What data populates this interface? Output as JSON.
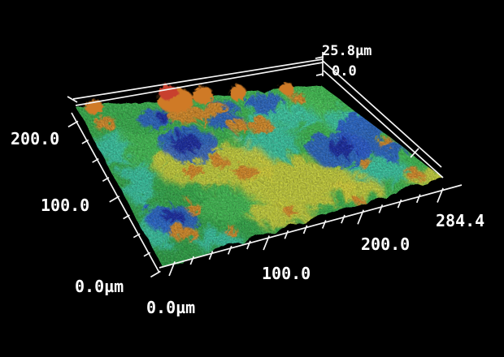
{
  "window": {
    "background_color": "#000000",
    "line_color": "#f5f5f5",
    "text_color": "#ffffff"
  },
  "chart_data": {
    "type": "heatmap",
    "subtype": "3d-surface-topography",
    "description": "Pseudo-color 3D surface height map of a rough sample area, 284.4 µm × ~213 µm, height scale 0–25.8 µm; blue = low, green = mid, yellow/orange/red = high peaks",
    "axes": {
      "x": {
        "unit": "µm",
        "range": [
          0,
          284.4
        ],
        "tick_labels": [
          "0.0µm",
          "100.0",
          "200.0",
          "284.4"
        ]
      },
      "y": {
        "unit": "µm",
        "range_shown": [
          0,
          200
        ],
        "tick_labels": [
          "0.0µm",
          "100.0",
          "200.0"
        ]
      },
      "z": {
        "unit": "µm",
        "range": [
          0,
          25.8
        ],
        "tick_labels": [
          "0.0",
          "25.8µm"
        ]
      }
    },
    "colormap": {
      "base-gradient": [
        "#2f9e48",
        "#49c659"
      ],
      "base-light": "#54cf60",
      "low": "#3fcdb9",
      "valley": "#2e60d4",
      "deep-valley": "#1b2ea4",
      "high": "#dcd63d",
      "higher": "#d98f2d",
      "peak": "#cf7a27",
      "peak-top": "#c8402f"
    },
    "regions_format": "u,v = fractional position on surface (u along 284.4µm axis from front-left corner, v along depth axis toward back); ru,rv = fractional radii; k = height class",
    "regions": [
      {
        "u": 0.18,
        "v": 0.72,
        "ru": 0.105,
        "rv": 0.102,
        "k": "base-light"
      },
      {
        "u": 0.8,
        "v": 0.85,
        "ru": 0.116,
        "rv": 0.084,
        "k": "base-light"
      },
      {
        "u": 0.35,
        "v": 0.25,
        "ru": 0.128,
        "rv": 0.102,
        "k": "base-light"
      },
      {
        "u": 0.04,
        "v": 0.77,
        "ru": 0.051,
        "rv": 0.093,
        "k": "low"
      },
      {
        "u": 0.07,
        "v": 0.53,
        "ru": 0.042,
        "rv": 0.13,
        "k": "low"
      },
      {
        "u": 0.05,
        "v": 0.25,
        "ru": 0.06,
        "rv": 0.102,
        "k": "low"
      },
      {
        "u": 0.21,
        "v": 0.08,
        "ru": 0.07,
        "rv": 0.056,
        "k": "low"
      },
      {
        "u": 0.73,
        "v": 0.8,
        "ru": 0.105,
        "rv": 0.074,
        "k": "low"
      },
      {
        "u": 0.95,
        "v": 0.7,
        "ru": 0.074,
        "rv": 0.065,
        "k": "low"
      },
      {
        "u": 0.85,
        "v": 0.25,
        "ru": 0.093,
        "rv": 0.084,
        "k": "low"
      },
      {
        "u": 0.6,
        "v": 0.6,
        "ru": 0.093,
        "rv": 0.093,
        "k": "low"
      },
      {
        "u": 0.36,
        "v": 0.55,
        "ru": 0.174,
        "rv": 0.13,
        "k": "high"
      },
      {
        "u": 0.58,
        "v": 0.3,
        "ru": 0.167,
        "rv": 0.14,
        "k": "high"
      },
      {
        "u": 0.97,
        "v": 0.08,
        "ru": 0.07,
        "rv": 0.06,
        "k": "high"
      },
      {
        "u": 0.45,
        "v": 0.12,
        "ru": 0.093,
        "rv": 0.065,
        "k": "high"
      },
      {
        "u": 0.75,
        "v": 0.15,
        "ru": 0.07,
        "rv": 0.056,
        "k": "high"
      },
      {
        "u": 0.33,
        "v": 0.7,
        "ru": 0.083,
        "rv": 0.093,
        "k": "valley"
      },
      {
        "u": 0.27,
        "v": 0.9,
        "ru": 0.051,
        "rv": 0.056,
        "k": "valley"
      },
      {
        "u": 0.52,
        "v": 0.82,
        "ru": 0.056,
        "rv": 0.047,
        "k": "valley"
      },
      {
        "u": 0.81,
        "v": 0.45,
        "ru": 0.088,
        "rv": 0.102,
        "k": "valley"
      },
      {
        "u": 0.93,
        "v": 0.55,
        "ru": 0.06,
        "rv": 0.121,
        "k": "valley"
      },
      {
        "u": 0.11,
        "v": 0.27,
        "ru": 0.074,
        "rv": 0.079,
        "k": "valley"
      },
      {
        "u": 0.72,
        "v": 0.92,
        "ru": 0.06,
        "rv": 0.051,
        "k": "valley"
      },
      {
        "u": 0.95,
        "v": 0.35,
        "ru": 0.047,
        "rv": 0.056,
        "k": "valley"
      },
      {
        "u": 0.55,
        "v": 0.93,
        "ru": 0.047,
        "rv": 0.042,
        "k": "valley"
      },
      {
        "u": 0.32,
        "v": 0.71,
        "ru": 0.042,
        "rv": 0.051,
        "k": "deep-valley"
      },
      {
        "u": 0.31,
        "v": 0.91,
        "ru": 0.023,
        "rv": 0.028,
        "k": "deep-valley"
      },
      {
        "u": 0.82,
        "v": 0.46,
        "ru": 0.037,
        "rv": 0.047,
        "k": "deep-valley"
      },
      {
        "u": 0.12,
        "v": 0.28,
        "ru": 0.03,
        "rv": 0.037,
        "k": "deep-valley"
      },
      {
        "u": 0.28,
        "v": 0.52,
        "ru": 0.03,
        "rv": 0.042,
        "k": "higher"
      },
      {
        "u": 0.39,
        "v": 0.55,
        "ru": 0.026,
        "rv": 0.037,
        "k": "higher"
      },
      {
        "u": 0.45,
        "v": 0.45,
        "ru": 0.033,
        "rv": 0.047,
        "k": "higher"
      },
      {
        "u": 0.63,
        "v": 0.75,
        "ru": 0.035,
        "rv": 0.047,
        "k": "higher"
      },
      {
        "u": 0.55,
        "v": 0.78,
        "ru": 0.028,
        "rv": 0.037,
        "k": "higher"
      },
      {
        "u": 0.84,
        "v": 0.3,
        "ru": 0.019,
        "rv": 0.028,
        "k": "higher"
      },
      {
        "u": 0.97,
        "v": 0.42,
        "ru": 0.021,
        "rv": 0.033,
        "k": "higher"
      },
      {
        "u": 0.12,
        "v": 0.17,
        "ru": 0.044,
        "rv": 0.037,
        "k": "higher"
      },
      {
        "u": 0.27,
        "v": 0.1,
        "ru": 0.019,
        "rv": 0.028,
        "k": "higher"
      },
      {
        "u": 0.49,
        "v": 0.12,
        "ru": 0.019,
        "rv": 0.028,
        "k": "higher"
      },
      {
        "u": 0.71,
        "v": 0.05,
        "ru": 0.016,
        "rv": 0.023,
        "k": "higher"
      },
      {
        "u": 0.2,
        "v": 0.3,
        "ru": 0.021,
        "rv": 0.033,
        "k": "higher"
      },
      {
        "u": 0.94,
        "v": 0.12,
        "ru": 0.023,
        "rv": 0.033,
        "k": "higher"
      },
      {
        "u": 0.4,
        "v": 0.9,
        "ru": 0.06,
        "rv": 0.056,
        "k": "higher"
      },
      {
        "u": 0.52,
        "v": 0.92,
        "ru": 0.037,
        "rv": 0.042,
        "k": "higher"
      },
      {
        "u": 0.07,
        "v": 0.92,
        "ru": 0.033,
        "rv": 0.037,
        "k": "higher"
      },
      {
        "u": 0.86,
        "v": 0.93,
        "ru": 0.023,
        "rv": 0.028,
        "k": "higher"
      },
      {
        "u": 0.07,
        "v": 1.0,
        "ru": 0.026,
        "rv": 0.042,
        "k": "peak"
      },
      {
        "u": 0.4,
        "v": 0.99,
        "ru": 0.051,
        "rv": 0.074,
        "k": "peak"
      },
      {
        "u": 0.395,
        "v": 1.05,
        "ru": 0.028,
        "rv": 0.042,
        "k": "peak-top"
      },
      {
        "u": 0.52,
        "v": 1.01,
        "ru": 0.03,
        "rv": 0.051,
        "k": "peak"
      },
      {
        "u": 0.66,
        "v": 1.0,
        "ru": 0.023,
        "rv": 0.047,
        "k": "peak"
      },
      {
        "u": 0.86,
        "v": 1.0,
        "ru": 0.021,
        "rv": 0.033,
        "k": "peak"
      }
    ]
  }
}
